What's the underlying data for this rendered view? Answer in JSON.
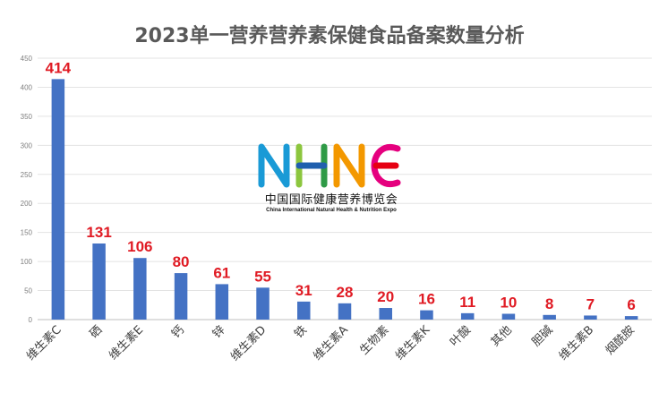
{
  "chart_data": {
    "type": "bar",
    "title": "2023单一营养营养素保健食品备案数量分析",
    "categories": [
      "维生素C",
      "硒",
      "维生素E",
      "钙",
      "锌",
      "维生素D",
      "铁",
      "维生素A",
      "生物素",
      "维生素K",
      "叶酸",
      "其他",
      "胆碱",
      "维生素B",
      "烟酰胺"
    ],
    "values": [
      414,
      131,
      106,
      80,
      61,
      55,
      31,
      28,
      20,
      16,
      11,
      10,
      8,
      7,
      6
    ],
    "yticks": [
      0,
      50,
      100,
      150,
      200,
      250,
      300,
      350,
      400,
      450
    ],
    "ylim": [
      0,
      450
    ],
    "xlabel": "",
    "ylabel": "",
    "grid": true,
    "bar_color": "#4472c4",
    "label_color": "#e01b24"
  },
  "logo": {
    "letters": [
      "N",
      "H",
      "N",
      "E"
    ],
    "cn": "中国国际健康营养博览会",
    "en": "China International Natural Health & Nutrition Expo"
  }
}
